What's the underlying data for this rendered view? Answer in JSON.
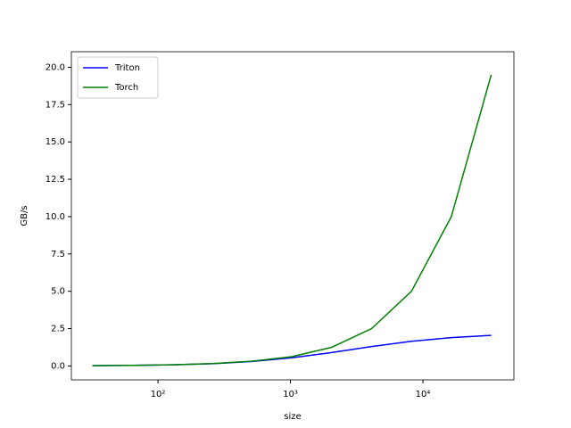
{
  "chart_data": {
    "type": "line",
    "xlabel": "size",
    "ylabel": "GB/s",
    "x": [
      32,
      64,
      128,
      256,
      512,
      1024,
      2048,
      4096,
      8192,
      16384,
      32768
    ],
    "series": [
      {
        "name": "Triton",
        "color": "#0000ff",
        "values": [
          0.02,
          0.04,
          0.08,
          0.15,
          0.3,
          0.55,
          0.9,
          1.3,
          1.65,
          1.9,
          2.05
        ]
      },
      {
        "name": "Torch",
        "color": "#008000",
        "values": [
          0.02,
          0.04,
          0.08,
          0.16,
          0.32,
          0.62,
          1.25,
          2.5,
          5.0,
          10.0,
          19.5
        ]
      }
    ],
    "xscale": "log",
    "xlim": [
      22.2,
      48600
    ],
    "xticks": [
      {
        "value": 100,
        "label": "10²"
      },
      {
        "value": 1000,
        "label": "10³"
      },
      {
        "value": 10000,
        "label": "10⁴"
      }
    ],
    "ylim": [
      -0.93,
      21.04
    ],
    "yticks": [
      {
        "value": 0,
        "label": "0.0"
      },
      2.5,
      {
        "value": 5,
        "label": "5.0"
      },
      7.5,
      {
        "value": 10,
        "label": "10.0"
      },
      12.5,
      {
        "value": 15,
        "label": "15.0"
      },
      17.5,
      {
        "value": 20,
        "label": "20.0"
      }
    ],
    "legend": "upper left"
  }
}
